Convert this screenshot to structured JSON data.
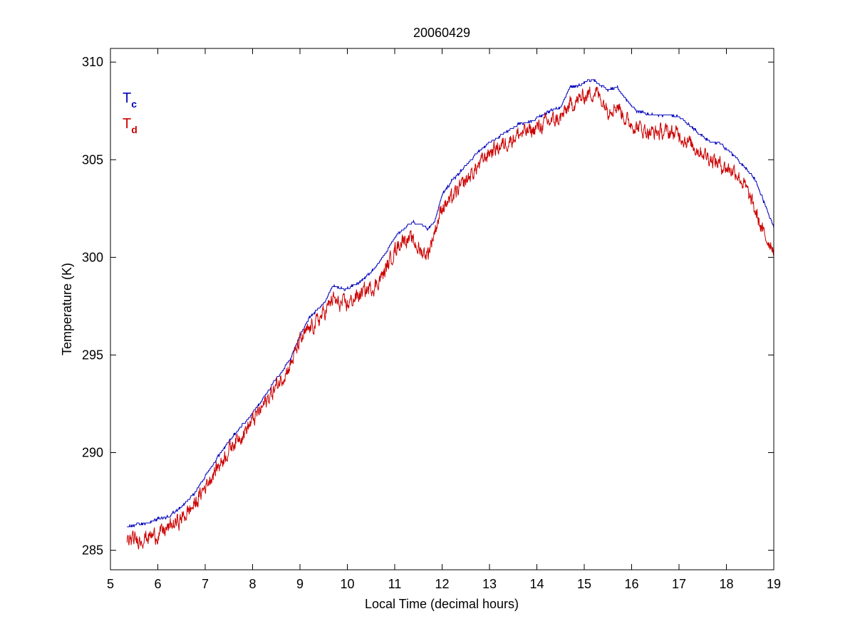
{
  "chart_data": {
    "type": "line",
    "title": "20060429",
    "xlabel": "Local Time (decimal hours)",
    "ylabel": "Temperature (K)",
    "xlim": [
      5,
      19
    ],
    "ylim": [
      284,
      310.7
    ],
    "xticks": [
      "5",
      "6",
      "7",
      "8",
      "9",
      "10",
      "11",
      "12",
      "13",
      "14",
      "15",
      "16",
      "17",
      "18",
      "19"
    ],
    "yticks": [
      "285",
      "290",
      "295",
      "300",
      "305",
      "310"
    ],
    "grid": false,
    "legend_position": "top-left",
    "series": [
      {
        "name": "T",
        "subscript": "c",
        "color": "#0000bb",
        "noise": 0.05,
        "x": [
          5.35,
          5.5,
          5.8,
          6.0,
          6.2,
          6.5,
          6.8,
          7.0,
          7.3,
          7.6,
          7.9,
          8.2,
          8.5,
          8.8,
          9.0,
          9.2,
          9.4,
          9.55,
          9.7,
          9.8,
          10.0,
          10.2,
          10.4,
          10.6,
          10.8,
          11.0,
          11.2,
          11.4,
          11.55,
          11.7,
          11.85,
          12.0,
          12.2,
          12.5,
          12.8,
          13.0,
          13.3,
          13.6,
          13.9,
          14.2,
          14.5,
          14.7,
          14.9,
          15.1,
          15.25,
          15.5,
          15.7,
          15.9,
          16.1,
          16.4,
          16.8,
          17.0,
          17.3,
          17.6,
          17.9,
          18.2,
          18.4,
          18.6,
          18.8,
          19.0
        ],
        "values": [
          286.2,
          286.3,
          286.4,
          286.6,
          286.7,
          287.2,
          288.0,
          288.8,
          289.9,
          290.9,
          291.7,
          292.7,
          293.8,
          294.8,
          296.0,
          296.9,
          297.4,
          297.8,
          298.6,
          298.4,
          298.4,
          298.6,
          299.0,
          299.5,
          300.2,
          301.0,
          301.5,
          301.8,
          301.7,
          301.4,
          301.9,
          303.2,
          303.9,
          304.7,
          305.5,
          305.9,
          306.3,
          306.8,
          307.0,
          307.4,
          307.7,
          308.7,
          308.8,
          309.1,
          309.0,
          308.6,
          308.7,
          308.0,
          307.5,
          307.3,
          307.3,
          307.2,
          306.6,
          306.0,
          305.8,
          305.1,
          304.6,
          304.0,
          302.8,
          301.5
        ]
      },
      {
        "name": "T",
        "subscript": "d",
        "color": "#cc0000",
        "noise": 0.32,
        "x": [
          5.35,
          5.5,
          5.8,
          6.0,
          6.2,
          6.5,
          6.8,
          7.0,
          7.3,
          7.6,
          7.9,
          8.2,
          8.5,
          8.8,
          9.0,
          9.2,
          9.4,
          9.55,
          9.7,
          9.8,
          10.0,
          10.2,
          10.4,
          10.6,
          10.8,
          11.0,
          11.2,
          11.4,
          11.55,
          11.7,
          11.85,
          12.0,
          12.2,
          12.5,
          12.8,
          13.0,
          13.3,
          13.6,
          13.9,
          14.2,
          14.5,
          14.7,
          14.9,
          15.1,
          15.25,
          15.5,
          15.7,
          15.9,
          16.1,
          16.4,
          16.8,
          17.0,
          17.3,
          17.6,
          17.9,
          18.2,
          18.4,
          18.6,
          18.8,
          19.0
        ],
        "values": [
          285.5,
          285.5,
          285.7,
          285.8,
          286.1,
          286.6,
          287.4,
          288.3,
          289.4,
          290.5,
          291.3,
          292.3,
          293.4,
          294.5,
          295.7,
          296.3,
          296.8,
          297.3,
          297.9,
          297.6,
          297.6,
          298.0,
          298.3,
          298.6,
          299.3,
          300.4,
          301.0,
          300.8,
          300.3,
          300.2,
          301.4,
          302.6,
          303.0,
          303.9,
          304.8,
          305.4,
          305.8,
          306.3,
          306.5,
          306.9,
          307.1,
          307.8,
          308.1,
          308.4,
          308.5,
          307.6,
          307.8,
          307.0,
          306.7,
          306.4,
          306.4,
          306.3,
          305.7,
          305.2,
          304.7,
          304.4,
          303.6,
          302.4,
          301.1,
          300.5
        ]
      }
    ]
  }
}
